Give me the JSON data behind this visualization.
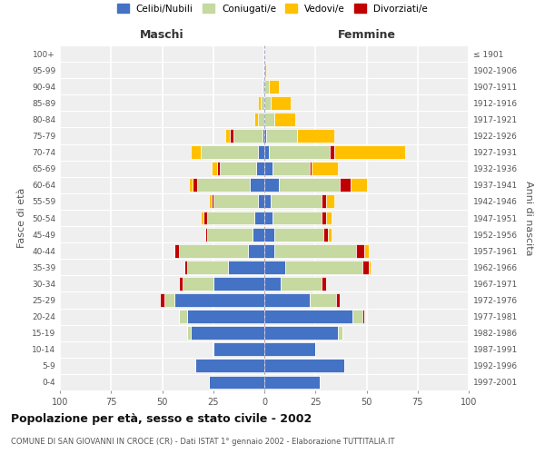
{
  "age_groups": [
    "0-4",
    "5-9",
    "10-14",
    "15-19",
    "20-24",
    "25-29",
    "30-34",
    "35-39",
    "40-44",
    "45-49",
    "50-54",
    "55-59",
    "60-64",
    "65-69",
    "70-74",
    "75-79",
    "80-84",
    "85-89",
    "90-94",
    "95-99",
    "100+"
  ],
  "birth_years": [
    "1997-2001",
    "1992-1996",
    "1987-1991",
    "1982-1986",
    "1977-1981",
    "1972-1976",
    "1967-1971",
    "1962-1966",
    "1957-1961",
    "1952-1956",
    "1947-1951",
    "1942-1946",
    "1937-1941",
    "1932-1936",
    "1927-1931",
    "1922-1926",
    "1917-1921",
    "1912-1916",
    "1907-1911",
    "1902-1906",
    "≤ 1901"
  ],
  "male": {
    "celibe": [
      27,
      34,
      25,
      36,
      38,
      44,
      25,
      18,
      8,
      6,
      5,
      3,
      7,
      4,
      3,
      1,
      0,
      0,
      0,
      0,
      0
    ],
    "coniugato": [
      0,
      0,
      0,
      2,
      4,
      5,
      15,
      20,
      34,
      22,
      23,
      22,
      26,
      18,
      28,
      14,
      3,
      2,
      1,
      0,
      0
    ],
    "vedovo": [
      0,
      0,
      0,
      0,
      0,
      0,
      0,
      0,
      0,
      0,
      1,
      1,
      2,
      3,
      5,
      2,
      2,
      1,
      0,
      0,
      0
    ],
    "divorziato": [
      0,
      0,
      0,
      0,
      0,
      2,
      2,
      1,
      2,
      1,
      2,
      1,
      2,
      1,
      0,
      2,
      0,
      0,
      0,
      0,
      0
    ]
  },
  "female": {
    "nubile": [
      27,
      39,
      25,
      36,
      43,
      22,
      8,
      10,
      5,
      5,
      4,
      3,
      7,
      4,
      2,
      1,
      0,
      0,
      0,
      0,
      0
    ],
    "coniugata": [
      0,
      0,
      0,
      2,
      5,
      13,
      20,
      38,
      40,
      24,
      24,
      25,
      30,
      18,
      30,
      15,
      5,
      3,
      2,
      0,
      0
    ],
    "vedova": [
      0,
      0,
      0,
      0,
      0,
      0,
      0,
      1,
      2,
      2,
      3,
      4,
      8,
      13,
      35,
      18,
      10,
      10,
      5,
      1,
      0
    ],
    "divorziata": [
      0,
      0,
      0,
      0,
      1,
      2,
      2,
      3,
      4,
      2,
      2,
      2,
      5,
      1,
      2,
      0,
      0,
      0,
      0,
      0,
      0
    ]
  },
  "colors": {
    "celibe": "#4472c4",
    "coniugato": "#c5d9a0",
    "vedovo": "#ffc000",
    "divorziato": "#c00000"
  },
  "xlim": 100,
  "title": "Popolazione per età, sesso e stato civile - 2002",
  "subtitle": "COMUNE DI SAN GIOVANNI IN CROCE (CR) - Dati ISTAT 1° gennaio 2002 - Elaborazione TUTTITALIA.IT",
  "ylabel_left": "Fasce di età",
  "ylabel_right": "Anni di nascita",
  "xlabel_left": "Maschi",
  "xlabel_right": "Femmine",
  "legend_labels": [
    "Celibi/Nubili",
    "Coniugati/e",
    "Vedovi/e",
    "Divorziati/e"
  ],
  "background_color": "#efefef"
}
